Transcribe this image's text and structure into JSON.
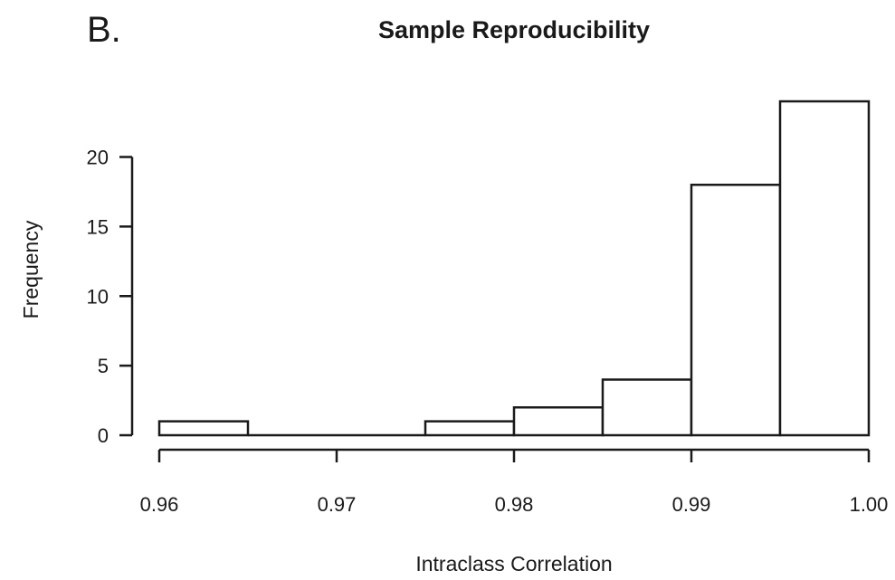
{
  "panel_label": "B.",
  "chart_data": {
    "type": "bar",
    "title": "Sample Reproducibility",
    "xlabel": "Intraclass Correlation",
    "ylabel": "Frequency",
    "bins": [
      {
        "start": 0.96,
        "end": 0.965,
        "count": 1
      },
      {
        "start": 0.965,
        "end": 0.97,
        "count": 0
      },
      {
        "start": 0.97,
        "end": 0.975,
        "count": 0
      },
      {
        "start": 0.975,
        "end": 0.98,
        "count": 1
      },
      {
        "start": 0.98,
        "end": 0.985,
        "count": 2
      },
      {
        "start": 0.985,
        "end": 0.99,
        "count": 4
      },
      {
        "start": 0.99,
        "end": 0.995,
        "count": 18
      },
      {
        "start": 0.995,
        "end": 1.0,
        "count": 24
      }
    ],
    "xlim": [
      0.96,
      1.0
    ],
    "ylim": [
      0,
      24
    ],
    "x_ticks": [
      0.96,
      0.97,
      0.98,
      0.99,
      1.0
    ],
    "x_tick_labels": [
      "0.96",
      "0.97",
      "0.98",
      "0.99",
      "1.00"
    ],
    "y_ticks": [
      0,
      5,
      10,
      15,
      20
    ],
    "y_tick_labels": [
      "0",
      "5",
      "10",
      "15",
      "20"
    ],
    "grid": false,
    "legend": "none"
  }
}
